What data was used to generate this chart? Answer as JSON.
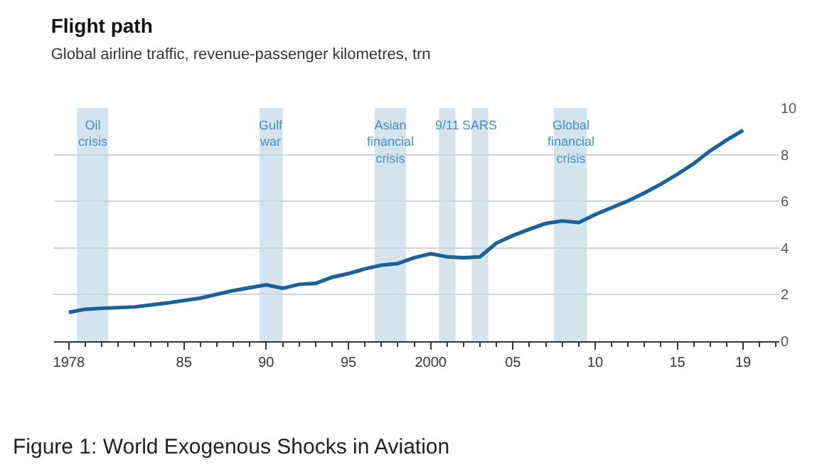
{
  "chart_data": {
    "type": "line",
    "title": "Flight path",
    "subtitle": "Global airline traffic, revenue-passenger kilometres, trn",
    "x": [
      1978,
      1979,
      1980,
      1982,
      1984,
      1986,
      1988,
      1990,
      1991,
      1992,
      1993,
      1994,
      1995,
      1996,
      1997,
      1998,
      1999,
      2000,
      2001,
      2002,
      2003,
      2004,
      2005,
      2006,
      2007,
      2008,
      2009,
      2010,
      2011,
      2012,
      2013,
      2014,
      2015,
      2016,
      2017,
      2018,
      2019
    ],
    "series": [
      {
        "color": "#1c6198",
        "values": [
          1.24,
          1.37,
          1.41,
          1.47,
          1.64,
          1.85,
          2.17,
          2.42,
          2.27,
          2.44,
          2.48,
          2.74,
          2.9,
          3.1,
          3.26,
          3.33,
          3.58,
          3.75,
          3.62,
          3.58,
          3.62,
          4.21,
          4.53,
          4.8,
          5.05,
          5.16,
          5.09,
          5.43,
          5.73,
          6.02,
          6.36,
          6.74,
          7.16,
          7.62,
          8.17,
          8.63,
          9.05
        ]
      }
    ],
    "xlim": [
      1977.1,
      2021.2
    ],
    "ylim": [
      0,
      10
    ],
    "xticks": [
      1978,
      {
        "value": 1985,
        "label": "85"
      },
      {
        "value": 1990,
        "label": "90"
      },
      {
        "value": 1995,
        "label": "95"
      },
      2000,
      {
        "value": 2005,
        "label": "05"
      },
      {
        "value": 2010,
        "label": "10"
      },
      {
        "value": 2015,
        "label": "15"
      },
      {
        "value": 2019,
        "label": "19"
      }
    ],
    "yticks": [
      0,
      2,
      4,
      6,
      8,
      10
    ],
    "grid": "y",
    "marker": "none",
    "line_style": "solid",
    "bands": [
      {
        "axis": "x",
        "from": 1978.5,
        "to": 1980.4,
        "label": "Oil\ncrisis",
        "color": "#d3e4ee"
      },
      {
        "axis": "x",
        "from": 1989.6,
        "to": 1991.0,
        "label": "Gulf\nwar",
        "color": "#d3e4ee"
      },
      {
        "axis": "x",
        "from": 1996.6,
        "to": 1998.5,
        "label": "Asian\nfinancial\ncrisis",
        "color": "#d3e4ee"
      },
      {
        "axis": "x",
        "from": 2000.5,
        "to": 2001.5,
        "label": "9/11",
        "color": "#d3e4ee"
      },
      {
        "axis": "x",
        "from": 2002.5,
        "to": 2003.5,
        "label": "SARS",
        "color": "#d3e4ee"
      },
      {
        "axis": "x",
        "from": 2007.5,
        "to": 2009.5,
        "label": "Global\nfinancial\ncrisis",
        "color": "#d3e4ee"
      }
    ],
    "annotations": [
      "Figure 1: World Exogenous Shocks in Aviation"
    ]
  }
}
